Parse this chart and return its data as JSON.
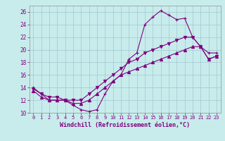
{
  "xlabel": "Windchill (Refroidissement éolien,°C)",
  "background_color": "#c8ecec",
  "line_color": "#800080",
  "grid_color": "#a0c8d0",
  "xlim": [
    -0.5,
    23.5
  ],
  "ylim": [
    10,
    27
  ],
  "xticks": [
    0,
    1,
    2,
    3,
    4,
    5,
    6,
    7,
    8,
    9,
    10,
    11,
    12,
    13,
    14,
    15,
    16,
    17,
    18,
    19,
    20,
    21,
    22,
    23
  ],
  "yticks": [
    10,
    12,
    14,
    16,
    18,
    20,
    22,
    24,
    26
  ],
  "curve1_x": [
    0,
    1,
    2,
    3,
    4,
    5,
    6,
    7,
    8,
    9,
    10,
    11,
    12,
    13,
    14,
    15,
    16,
    17,
    18,
    19,
    20,
    21,
    22,
    23
  ],
  "curve1_y": [
    14.0,
    13.0,
    12.0,
    12.0,
    12.0,
    11.2,
    10.5,
    10.2,
    10.5,
    13.0,
    15.0,
    16.0,
    18.5,
    19.5,
    24.0,
    25.2,
    26.2,
    25.5,
    24.8,
    25.0,
    22.0,
    20.5,
    19.5,
    19.5
  ],
  "curve2_x": [
    0,
    1,
    2,
    3,
    4,
    5,
    6,
    7,
    8,
    9,
    10,
    11,
    12,
    13,
    14,
    15,
    16,
    17,
    18,
    19,
    20,
    21,
    22,
    23
  ],
  "curve2_y": [
    13.8,
    13.0,
    12.5,
    12.5,
    12.0,
    12.0,
    12.0,
    13.0,
    14.0,
    15.0,
    16.0,
    17.0,
    18.0,
    18.5,
    19.5,
    20.0,
    20.5,
    21.0,
    21.5,
    22.0,
    22.0,
    20.5,
    18.5,
    19.0
  ],
  "curve3_x": [
    0,
    1,
    2,
    3,
    4,
    5,
    6,
    7,
    8,
    9,
    10,
    11,
    12,
    13,
    14,
    15,
    16,
    17,
    18,
    19,
    20,
    21,
    22,
    23
  ],
  "curve3_y": [
    13.5,
    12.5,
    12.0,
    12.0,
    12.0,
    11.5,
    11.5,
    12.0,
    13.0,
    14.0,
    15.0,
    16.0,
    16.5,
    17.0,
    17.5,
    18.0,
    18.5,
    19.0,
    19.5,
    20.0,
    20.5,
    20.5,
    18.5,
    19.0
  ]
}
